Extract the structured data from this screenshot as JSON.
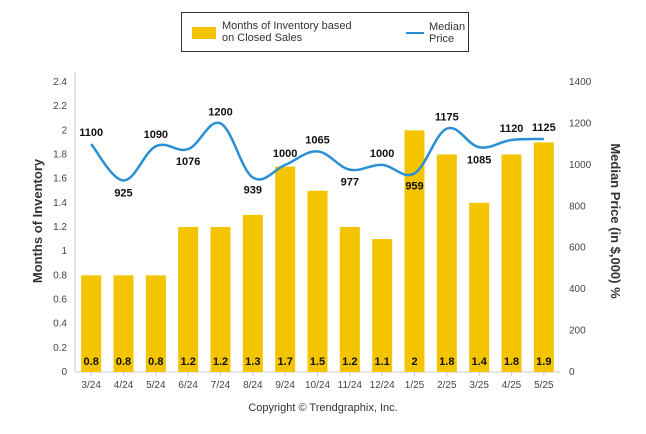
{
  "chart_data": {
    "type": "bar+line",
    "categories": [
      "3/24",
      "4/24",
      "5/24",
      "6/24",
      "7/24",
      "8/24",
      "9/24",
      "10/24",
      "11/24",
      "12/24",
      "1/25",
      "2/25",
      "3/25",
      "4/25",
      "5/25"
    ],
    "series": [
      {
        "name": "Months of Inventory based on Closed Sales",
        "type": "bar",
        "axis": "left",
        "values": [
          0.8,
          0.8,
          0.8,
          1.2,
          1.2,
          1.3,
          1.7,
          1.5,
          1.2,
          1.1,
          2,
          1.8,
          1.4,
          1.8,
          1.9
        ],
        "labels": [
          "0.8",
          "0.8",
          "0.8",
          "1.2",
          "1.2",
          "1.3",
          "1.7",
          "1.5",
          "1.2",
          "1.1",
          "2",
          "1.8",
          "1.4",
          "1.8",
          "1.9"
        ],
        "color": "#f5c400"
      },
      {
        "name": "Median Price",
        "type": "line",
        "axis": "right",
        "values": [
          1100,
          925,
          1090,
          1076,
          1200,
          939,
          1000,
          1065,
          977,
          1000,
          959,
          1175,
          1085,
          1120,
          1125
        ],
        "labels": [
          "1100",
          "925",
          "1090",
          "1076",
          "1200",
          "939",
          "1000",
          "1065",
          "977",
          "1000",
          "959",
          "1175",
          "1085",
          "1120",
          "1125"
        ],
        "color": "#2a8fd4"
      }
    ],
    "ylabel": "Months of Inventory",
    "y2label": "Median Price (in $,000) %",
    "ylim": [
      0,
      2.4
    ],
    "yticks": [
      "0",
      "0.2",
      "0.4",
      "0.6",
      "0.8",
      "1",
      "1.2",
      "1.4",
      "1.6",
      "1.8",
      "2",
      "2.2",
      "2.4"
    ],
    "y2lim": [
      0,
      1400
    ],
    "y2ticks": [
      "0",
      "200",
      "400",
      "600",
      "800",
      "1000",
      "1200",
      "1400"
    ],
    "grid": false,
    "legend_position": "top-center"
  },
  "legend": {
    "bar_label_line1": "Months of Inventory based",
    "bar_label_line2": "on Closed Sales",
    "line_label": "Median Price"
  },
  "footer": {
    "copyright": "Copyright © Trendgraphix, Inc."
  }
}
